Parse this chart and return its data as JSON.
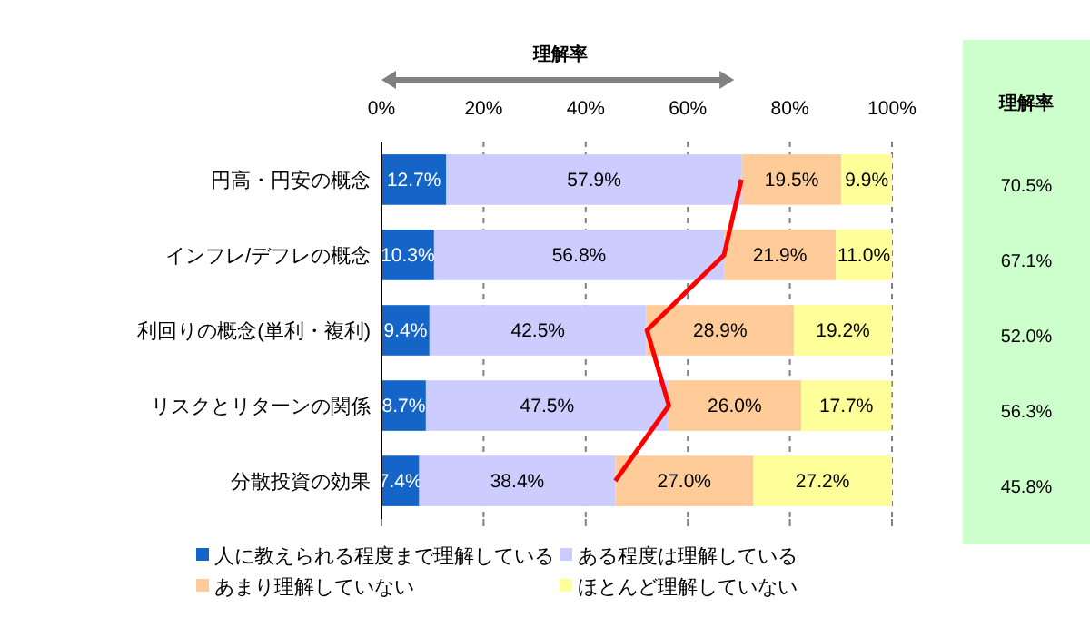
{
  "chart_data": {
    "type": "bar",
    "orientation": "horizontal",
    "stacked": true,
    "categories": [
      "円高・円安の概念",
      "インフレ/デフレの概念",
      "利回りの概念(単利・複利)",
      "リスクとリターンの関係",
      "分散投資の効果"
    ],
    "series": [
      {
        "name": "人に教えられる程度まで理解している",
        "color": "#1565c8",
        "values": [
          12.7,
          10.3,
          9.4,
          8.7,
          7.4
        ],
        "value_labels": [
          "12.7%",
          "10.3%",
          "9.4%",
          "8.7%",
          "7.4%"
        ]
      },
      {
        "name": "ある程度は理解している",
        "color": "#ccccff",
        "values": [
          57.9,
          56.8,
          42.5,
          47.5,
          38.4
        ],
        "value_labels": [
          "57.9%",
          "56.8%",
          "42.5%",
          "47.5%",
          "38.4%"
        ]
      },
      {
        "name": "あまり理解していない",
        "color": "#ffcc99",
        "values": [
          19.5,
          21.9,
          28.9,
          26.0,
          27.0
        ],
        "value_labels": [
          "19.5%",
          "21.9%",
          "28.9%",
          "26.0%",
          "27.0%"
        ]
      },
      {
        "name": "ほとんど理解していない",
        "color": "#ffff99",
        "values": [
          9.9,
          11.0,
          19.2,
          17.7,
          27.2
        ],
        "value_labels": [
          "9.9%",
          "11.0%",
          "19.2%",
          "17.7%",
          "27.2%"
        ]
      },
      {
        "type": "line",
        "color": "#ff0000",
        "values": [
          70.5,
          67.1,
          52.0,
          56.3,
          45.8
        ],
        "value_labels": [
          "70.5%",
          "67.1%",
          "52.0%",
          "56.3%",
          "45.8%"
        ]
      }
    ],
    "xlim": [
      0,
      100
    ],
    "xticks": [
      {
        "value": 0,
        "label": "0%"
      },
      {
        "value": 20,
        "label": "20%"
      },
      {
        "value": 40,
        "label": "40%"
      },
      {
        "value": 60,
        "label": "60%"
      },
      {
        "value": 80,
        "label": "80%"
      },
      {
        "value": 100,
        "label": "100%"
      }
    ],
    "grid": "x",
    "legend": "bottom",
    "annotations": [
      "理解率",
      "理解率"
    ]
  }
}
